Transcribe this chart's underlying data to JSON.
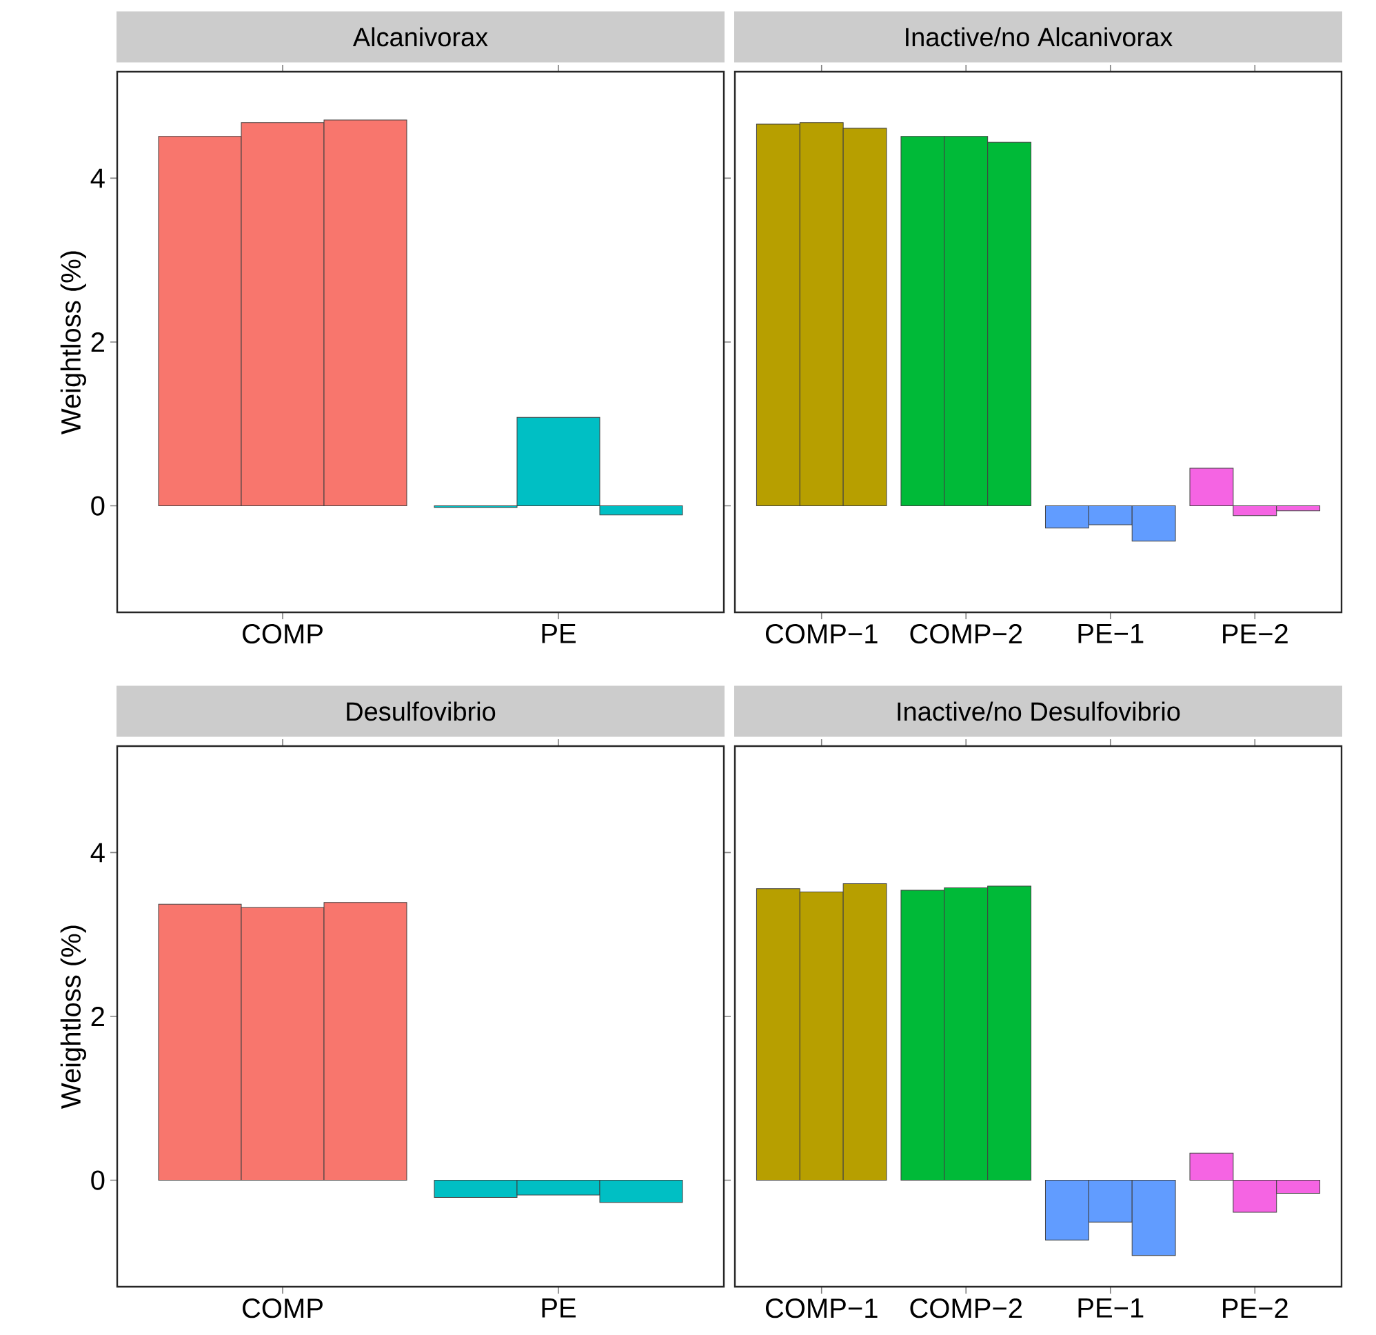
{
  "chart_data": [
    {
      "type": "bar",
      "title": "Alcanivorax",
      "ylabel": "Weightloss (%)",
      "categories": [
        "COMP",
        "PE"
      ],
      "ylim": [
        -1.3,
        5.3
      ],
      "yticks": [
        0,
        2,
        4
      ],
      "series": [
        {
          "colors": [
            "#F8766D",
            "#00BFC4"
          ],
          "values": [
            4.51,
            -0.02
          ]
        },
        {
          "colors": [
            "#F8766D",
            "#00BFC4"
          ],
          "values": [
            4.68,
            1.08
          ]
        },
        {
          "colors": [
            "#F8766D",
            "#00BFC4"
          ],
          "values": [
            4.71,
            -0.11
          ]
        }
      ]
    },
    {
      "type": "bar",
      "title": "Inactive/no Alcanivorax",
      "categories": [
        "COMP−1",
        "COMP−2",
        "PE−1",
        "PE−2"
      ],
      "ylim": [
        -1.3,
        5.3
      ],
      "yticks": [
        0,
        2,
        4
      ],
      "tick_labels": "x",
      "series": [
        {
          "colors": [
            "#B79F00",
            "#00BA38",
            "#619CFF",
            "#F564E3"
          ],
          "values": [
            4.66,
            4.51,
            -0.27,
            0.46
          ]
        },
        {
          "colors": [
            "#B79F00",
            "#00BA38",
            "#619CFF",
            "#F564E3"
          ],
          "values": [
            4.68,
            4.51,
            -0.23,
            -0.12
          ]
        },
        {
          "colors": [
            "#B79F00",
            "#00BA38",
            "#619CFF",
            "#F564E3"
          ],
          "values": [
            4.61,
            4.44,
            -0.43,
            -0.06
          ]
        }
      ]
    },
    {
      "type": "bar",
      "title": "Desulfovibrio",
      "ylabel": "Weightloss (%)",
      "categories": [
        "COMP",
        "PE"
      ],
      "ylim": [
        -1.3,
        5.3
      ],
      "yticks": [
        0,
        2,
        4
      ],
      "series": [
        {
          "colors": [
            "#F8766D",
            "#00BFC4"
          ],
          "values": [
            3.37,
            -0.21
          ]
        },
        {
          "colors": [
            "#F8766D",
            "#00BFC4"
          ],
          "values": [
            3.33,
            -0.18
          ]
        },
        {
          "colors": [
            "#F8766D",
            "#00BFC4"
          ],
          "values": [
            3.39,
            -0.27
          ]
        }
      ]
    },
    {
      "type": "bar",
      "title": "Inactive/no Desulfovibrio",
      "categories": [
        "COMP−1",
        "COMP−2",
        "PE−1",
        "PE−2"
      ],
      "ylim": [
        -1.3,
        5.3
      ],
      "yticks": [
        0,
        2,
        4
      ],
      "tick_labels": "x",
      "series": [
        {
          "colors": [
            "#B79F00",
            "#00BA38",
            "#619CFF",
            "#F564E3"
          ],
          "values": [
            3.56,
            3.54,
            -0.73,
            0.33
          ]
        },
        {
          "colors": [
            "#B79F00",
            "#00BA38",
            "#619CFF",
            "#F564E3"
          ],
          "values": [
            3.52,
            3.57,
            -0.51,
            -0.39
          ]
        },
        {
          "colors": [
            "#B79F00",
            "#00BA38",
            "#619CFF",
            "#F564E3"
          ],
          "values": [
            3.62,
            3.59,
            -0.92,
            -0.16
          ]
        }
      ]
    }
  ]
}
